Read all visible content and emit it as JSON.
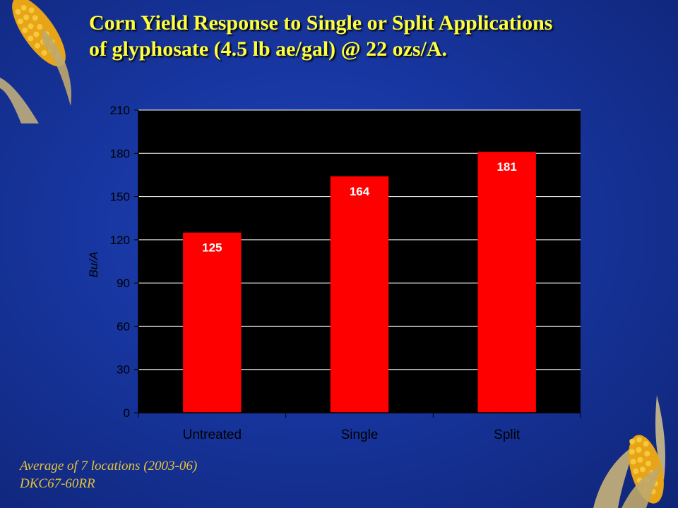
{
  "slide": {
    "title_line1": "Corn Yield Response to Single or Split Applications",
    "title_line2": "of glyphosate (4.5 lb ae/gal) @ 22 ozs/A.",
    "footnote_line1": "Average of 7 locations (2003-06)",
    "footnote_line2": "DKC67-60RR"
  },
  "colors": {
    "title": "#ffff3c",
    "bar": "#ff0000",
    "plot_background": "#000000",
    "footnote": "#e6c43a"
  },
  "decorations": [
    "corn-cob-top-left",
    "corn-cob-bottom-right"
  ],
  "chart_data": {
    "type": "bar",
    "categories": [
      "Untreated",
      "Single",
      "Split"
    ],
    "values": [
      125,
      164,
      181
    ],
    "data_labels": [
      "125",
      "164",
      "181"
    ],
    "xlabel": "",
    "ylabel": "Bu/A",
    "ylim": [
      0,
      210
    ],
    "yticks": [
      0,
      30,
      60,
      90,
      120,
      150,
      180,
      210
    ],
    "grid": true,
    "legend": "none"
  }
}
